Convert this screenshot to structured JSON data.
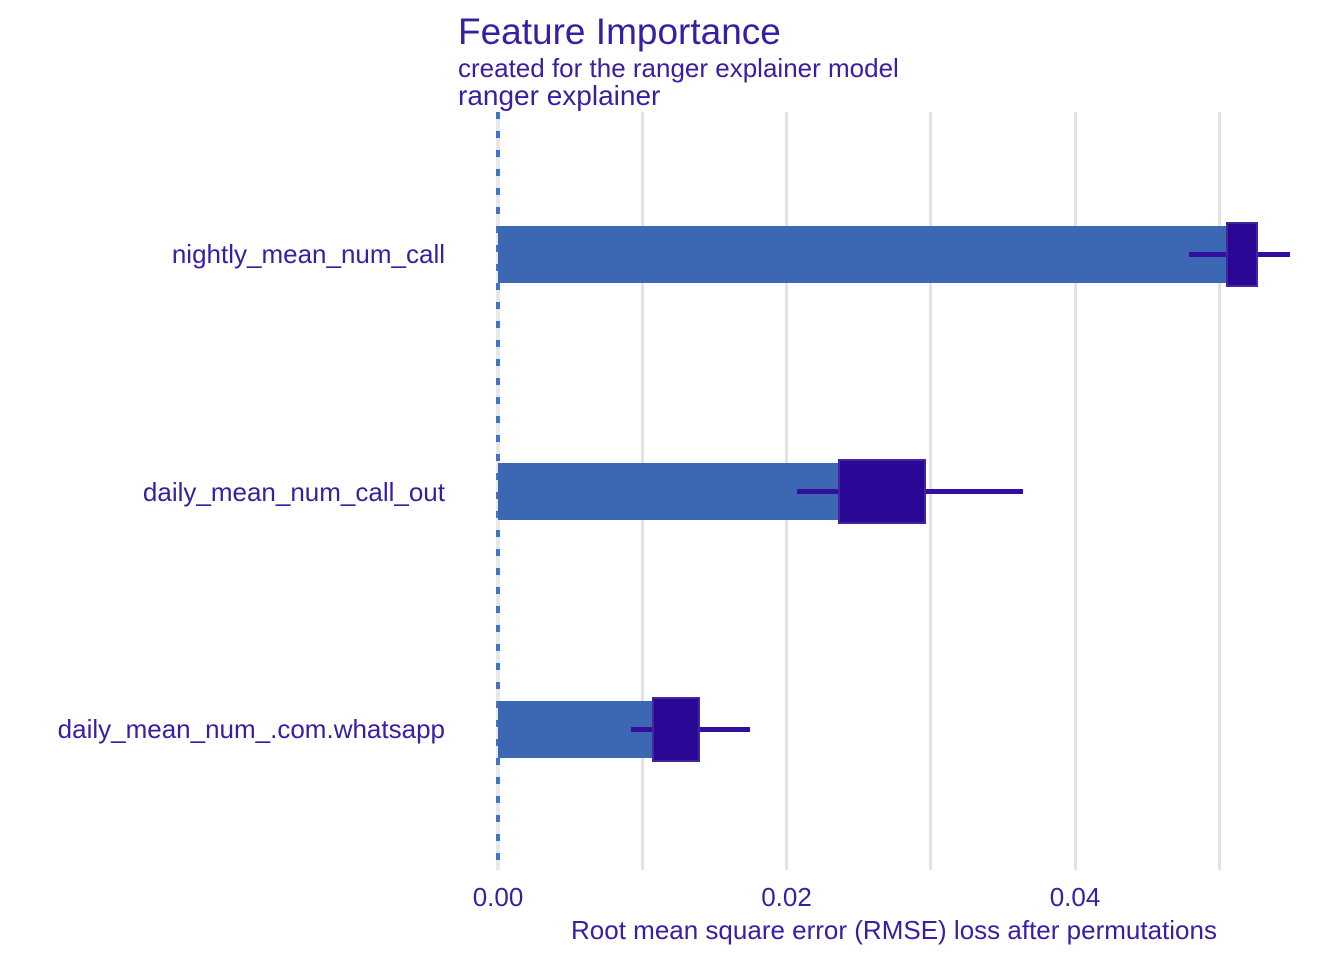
{
  "header": {
    "title": "Feature Importance",
    "subtitle": "created for the ranger explainer model",
    "facet_label": "ranger explainer"
  },
  "colors": {
    "text": "#371ea3",
    "bar_fill": "#3c68b3",
    "box_fill": "#2b0796",
    "box_border": "#43269f",
    "whisker": "#330f9e",
    "gridline": "#e2e2e2",
    "zero_dash_blue": "#4273c4",
    "background": "#ffffff"
  },
  "chart_data": {
    "type": "bar",
    "orientation": "horizontal",
    "title": "Feature Importance",
    "subtitle": "created for the ranger explainer model",
    "facet_label": "ranger explainer",
    "xlabel": "Root mean square error (RMSE) loss after permutations",
    "x_tick_labels": [
      "0.00",
      "0.02",
      "0.04"
    ],
    "x_tick_values": [
      0,
      0.02,
      0.04
    ],
    "x_gridline_values": [
      0,
      0.01,
      0.02,
      0.03,
      0.04,
      0.05
    ],
    "xlim": [
      -0.0028,
      0.0577
    ],
    "zero_line_x": 0,
    "grid": true,
    "legend": false,
    "features": [
      {
        "label": "nightly_mean_num_call",
        "bar_value": 0.0516,
        "box_q1": 0.0505,
        "box_q3": 0.0527,
        "whisker_low": 0.0479,
        "whisker_high": 0.0549
      },
      {
        "label": "daily_mean_num_call_out",
        "bar_value": 0.0266,
        "box_q1": 0.0236,
        "box_q3": 0.0297,
        "whisker_low": 0.0207,
        "whisker_high": 0.0364
      },
      {
        "label": "daily_mean_num_.com.whatsapp",
        "bar_value": 0.0124,
        "box_q1": 0.0107,
        "box_q3": 0.014,
        "whisker_low": 0.0092,
        "whisker_high": 0.0175
      }
    ]
  }
}
